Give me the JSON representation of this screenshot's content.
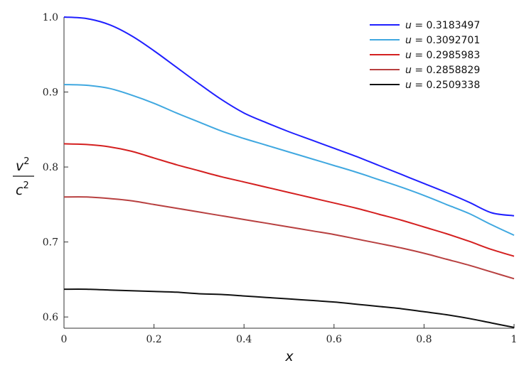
{
  "chart_data": {
    "type": "line",
    "xlabel": "x",
    "ylabel": {
      "numerator": "v",
      "numerator_exp": "2",
      "denominator": "c",
      "denominator_exp": "2"
    },
    "xlim": [
      0,
      1
    ],
    "ylim": [
      0.585,
      1.0
    ],
    "x_ticks": [
      "0",
      "0.2",
      "0.4",
      "0.6",
      "0.8",
      "1"
    ],
    "y_ticks": [
      "0.6",
      "0.7",
      "0.8",
      "0.9",
      "1.0"
    ],
    "grid": false,
    "legend_position": "top-right",
    "legend_var": "u",
    "series": [
      {
        "name": "0.3183497",
        "color": "#2020ff",
        "x": [
          0,
          0.05,
          0.1,
          0.15,
          0.2,
          0.25,
          0.3,
          0.35,
          0.4,
          0.45,
          0.5,
          0.55,
          0.6,
          0.65,
          0.7,
          0.75,
          0.8,
          0.85,
          0.9,
          0.95,
          1.0
        ],
        "y": [
          1.0,
          0.998,
          0.99,
          0.975,
          0.955,
          0.933,
          0.911,
          0.89,
          0.872,
          0.859,
          0.847,
          0.836,
          0.825,
          0.814,
          0.802,
          0.79,
          0.778,
          0.766,
          0.753,
          0.739,
          0.735
        ]
      },
      {
        "name": "0.3092701",
        "color": "#40a8e0",
        "x": [
          0,
          0.05,
          0.1,
          0.15,
          0.2,
          0.25,
          0.3,
          0.35,
          0.4,
          0.45,
          0.5,
          0.55,
          0.6,
          0.65,
          0.7,
          0.75,
          0.8,
          0.85,
          0.9,
          0.95,
          1.0
        ],
        "y": [
          0.91,
          0.909,
          0.905,
          0.896,
          0.885,
          0.872,
          0.86,
          0.848,
          0.838,
          0.829,
          0.82,
          0.811,
          0.802,
          0.793,
          0.783,
          0.773,
          0.762,
          0.75,
          0.738,
          0.723,
          0.709
        ]
      },
      {
        "name": "0.2985983",
        "color": "#d42020",
        "x": [
          0,
          0.05,
          0.1,
          0.15,
          0.2,
          0.25,
          0.3,
          0.35,
          0.4,
          0.45,
          0.5,
          0.55,
          0.6,
          0.65,
          0.7,
          0.75,
          0.8,
          0.85,
          0.9,
          0.95,
          1.0
        ],
        "y": [
          0.831,
          0.83,
          0.827,
          0.821,
          0.812,
          0.803,
          0.795,
          0.787,
          0.78,
          0.773,
          0.766,
          0.759,
          0.752,
          0.745,
          0.737,
          0.729,
          0.72,
          0.711,
          0.701,
          0.69,
          0.681
        ]
      },
      {
        "name": "0.2858829",
        "color": "#b84040",
        "x": [
          0,
          0.05,
          0.1,
          0.15,
          0.2,
          0.25,
          0.3,
          0.35,
          0.4,
          0.45,
          0.5,
          0.55,
          0.6,
          0.65,
          0.7,
          0.75,
          0.8,
          0.85,
          0.9,
          0.95,
          1.0
        ],
        "y": [
          0.76,
          0.76,
          0.758,
          0.755,
          0.75,
          0.745,
          0.74,
          0.735,
          0.73,
          0.725,
          0.72,
          0.715,
          0.71,
          0.704,
          0.698,
          0.692,
          0.685,
          0.677,
          0.669,
          0.66,
          0.651
        ]
      },
      {
        "name": "0.2509338",
        "color": "#111111",
        "x": [
          0,
          0.05,
          0.1,
          0.15,
          0.2,
          0.25,
          0.3,
          0.35,
          0.4,
          0.45,
          0.5,
          0.55,
          0.6,
          0.65,
          0.7,
          0.75,
          0.8,
          0.85,
          0.9,
          0.95,
          1.0
        ],
        "y": [
          0.637,
          0.637,
          0.636,
          0.635,
          0.634,
          0.633,
          0.631,
          0.63,
          0.628,
          0.626,
          0.624,
          0.622,
          0.62,
          0.617,
          0.614,
          0.611,
          0.607,
          0.603,
          0.598,
          0.592,
          0.586
        ]
      }
    ]
  }
}
